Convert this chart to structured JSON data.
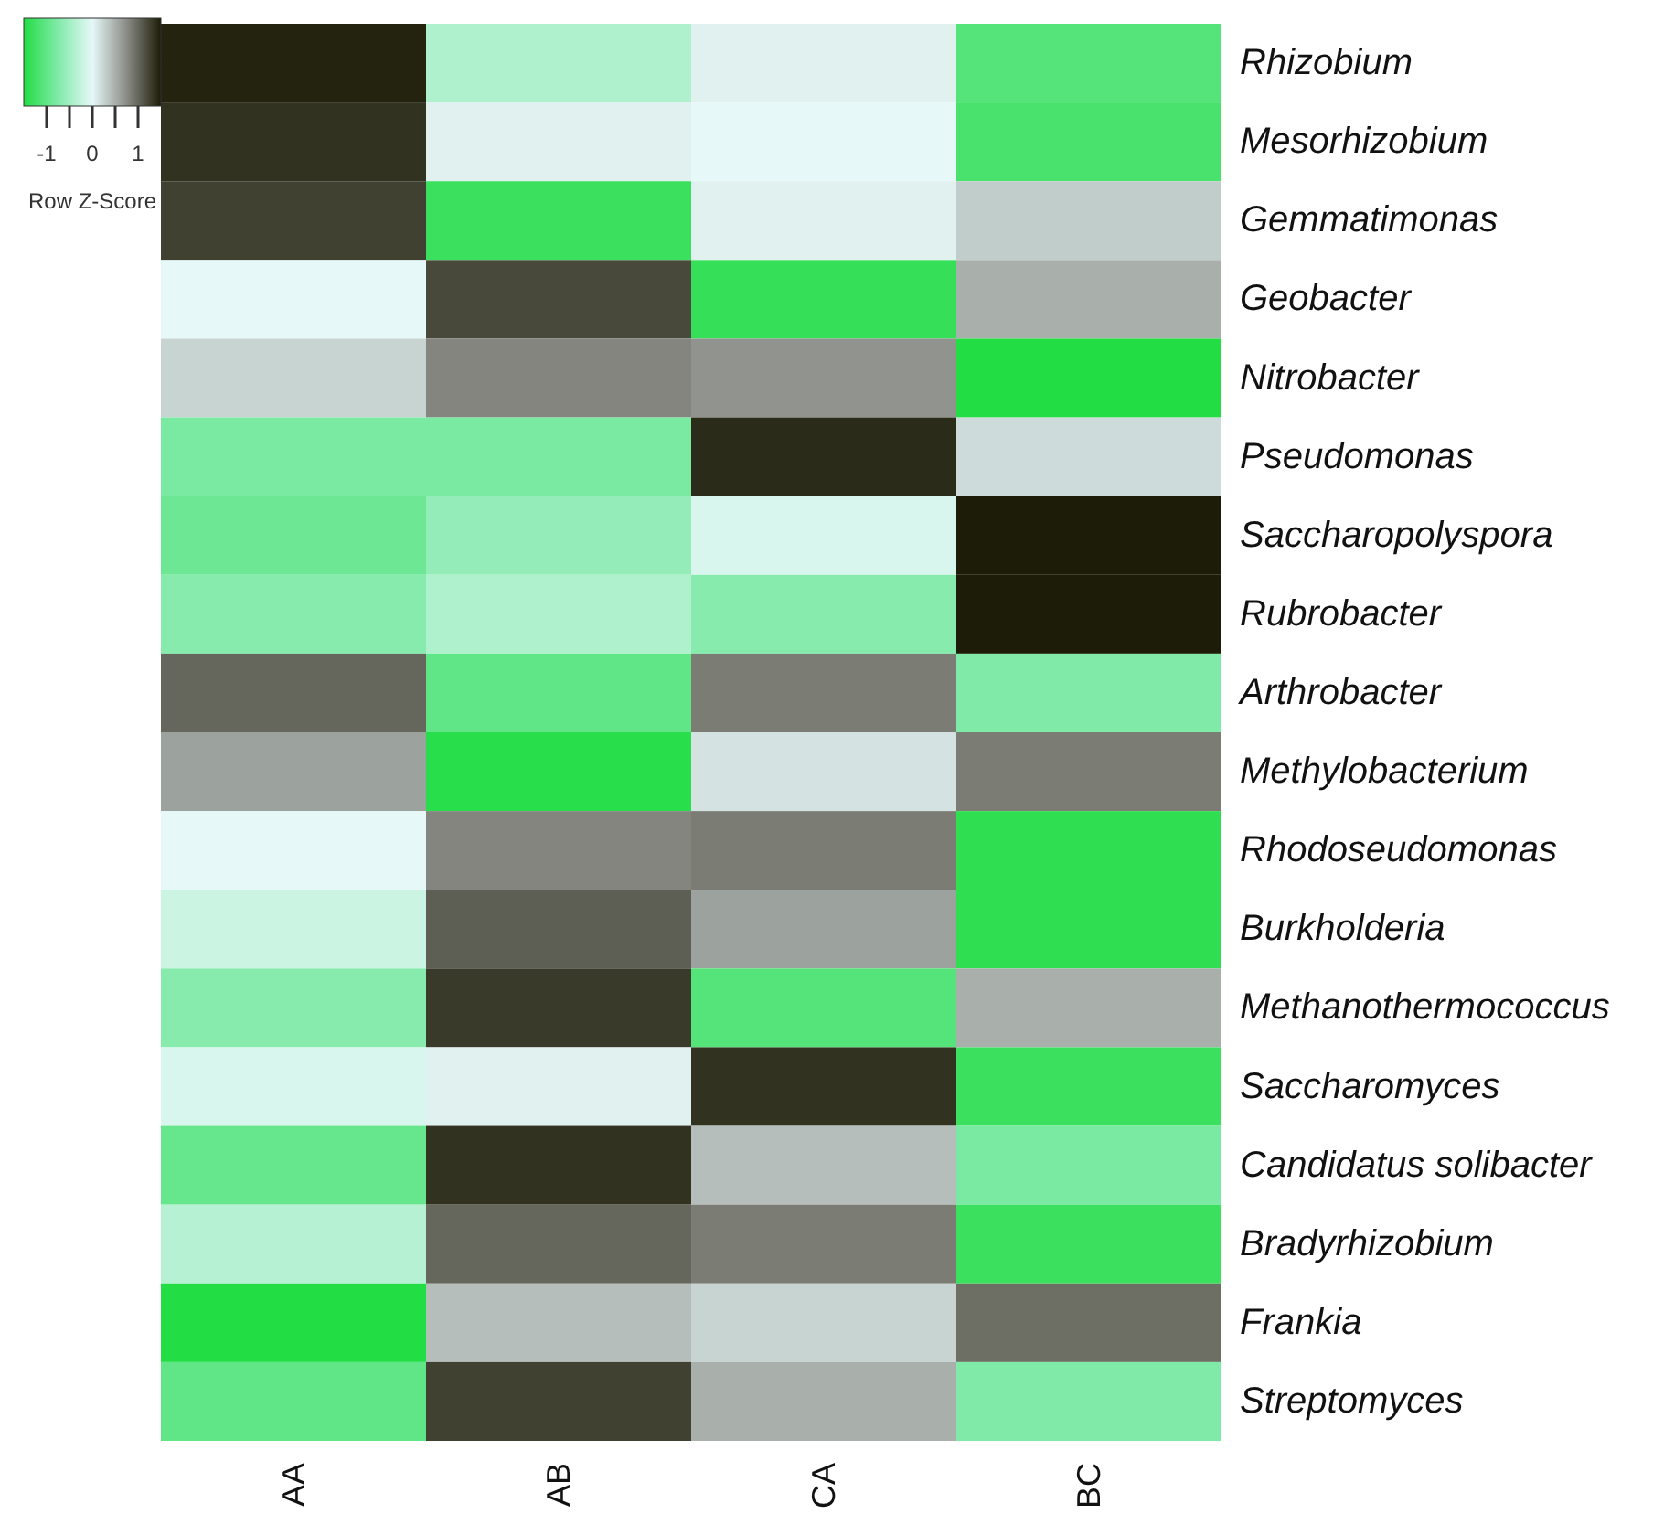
{
  "chart_data": {
    "type": "heatmap",
    "categories": [
      "AA",
      "AB",
      "CA",
      "BC"
    ],
    "y_categories": [
      "Rhizobium",
      "Mesorhizobium",
      "Gemmatimonas",
      "Geobacter",
      "Nitrobacter",
      "Pseudomonas",
      "Saccharopolyspora",
      "Rubrobacter",
      "Arthrobacter",
      "Methylobacterium",
      "Rhodoseudomonas",
      "Burkholderia",
      "Methanothermococcus",
      "Saccharomyces",
      "Candidatus solibacter",
      "Bradyrhizobium",
      "Frankia",
      "Streptomyces"
    ],
    "cells": [
      [
        1.45,
        -0.4,
        0.05,
        -1.1
      ],
      [
        1.35,
        0.05,
        0.0,
        -1.2
      ],
      [
        1.25,
        -1.3,
        0.05,
        0.3
      ],
      [
        0.0,
        1.2,
        -1.35,
        0.5
      ],
      [
        0.25,
        0.8,
        0.7,
        -1.5
      ],
      [
        -0.8,
        -0.8,
        1.4,
        0.2
      ],
      [
        -0.9,
        -0.6,
        -0.1,
        1.5
      ],
      [
        -0.7,
        -0.4,
        -0.7,
        1.5
      ],
      [
        1.0,
        -1.0,
        0.85,
        -0.75
      ],
      [
        0.6,
        -1.45,
        0.15,
        0.85
      ],
      [
        0.0,
        0.8,
        0.85,
        -1.4
      ],
      [
        -0.2,
        1.05,
        0.6,
        -1.4
      ],
      [
        -0.7,
        1.3,
        -1.1,
        0.5
      ],
      [
        -0.1,
        0.05,
        1.35,
        -1.3
      ],
      [
        -0.95,
        1.35,
        0.4,
        -0.8
      ],
      [
        -0.35,
        1.0,
        0.85,
        -1.3
      ],
      [
        -1.5,
        0.4,
        0.25,
        0.95
      ],
      [
        -1.0,
        1.25,
        0.5,
        -0.75
      ]
    ],
    "clim": [
      -1.5,
      1.5
    ],
    "cticks": [
      -1,
      {
        "value": -0.5,
        "label": null
      },
      0,
      {
        "value": 0.5,
        "label": null
      },
      1
    ],
    "clabel": "Row Z-Score"
  }
}
